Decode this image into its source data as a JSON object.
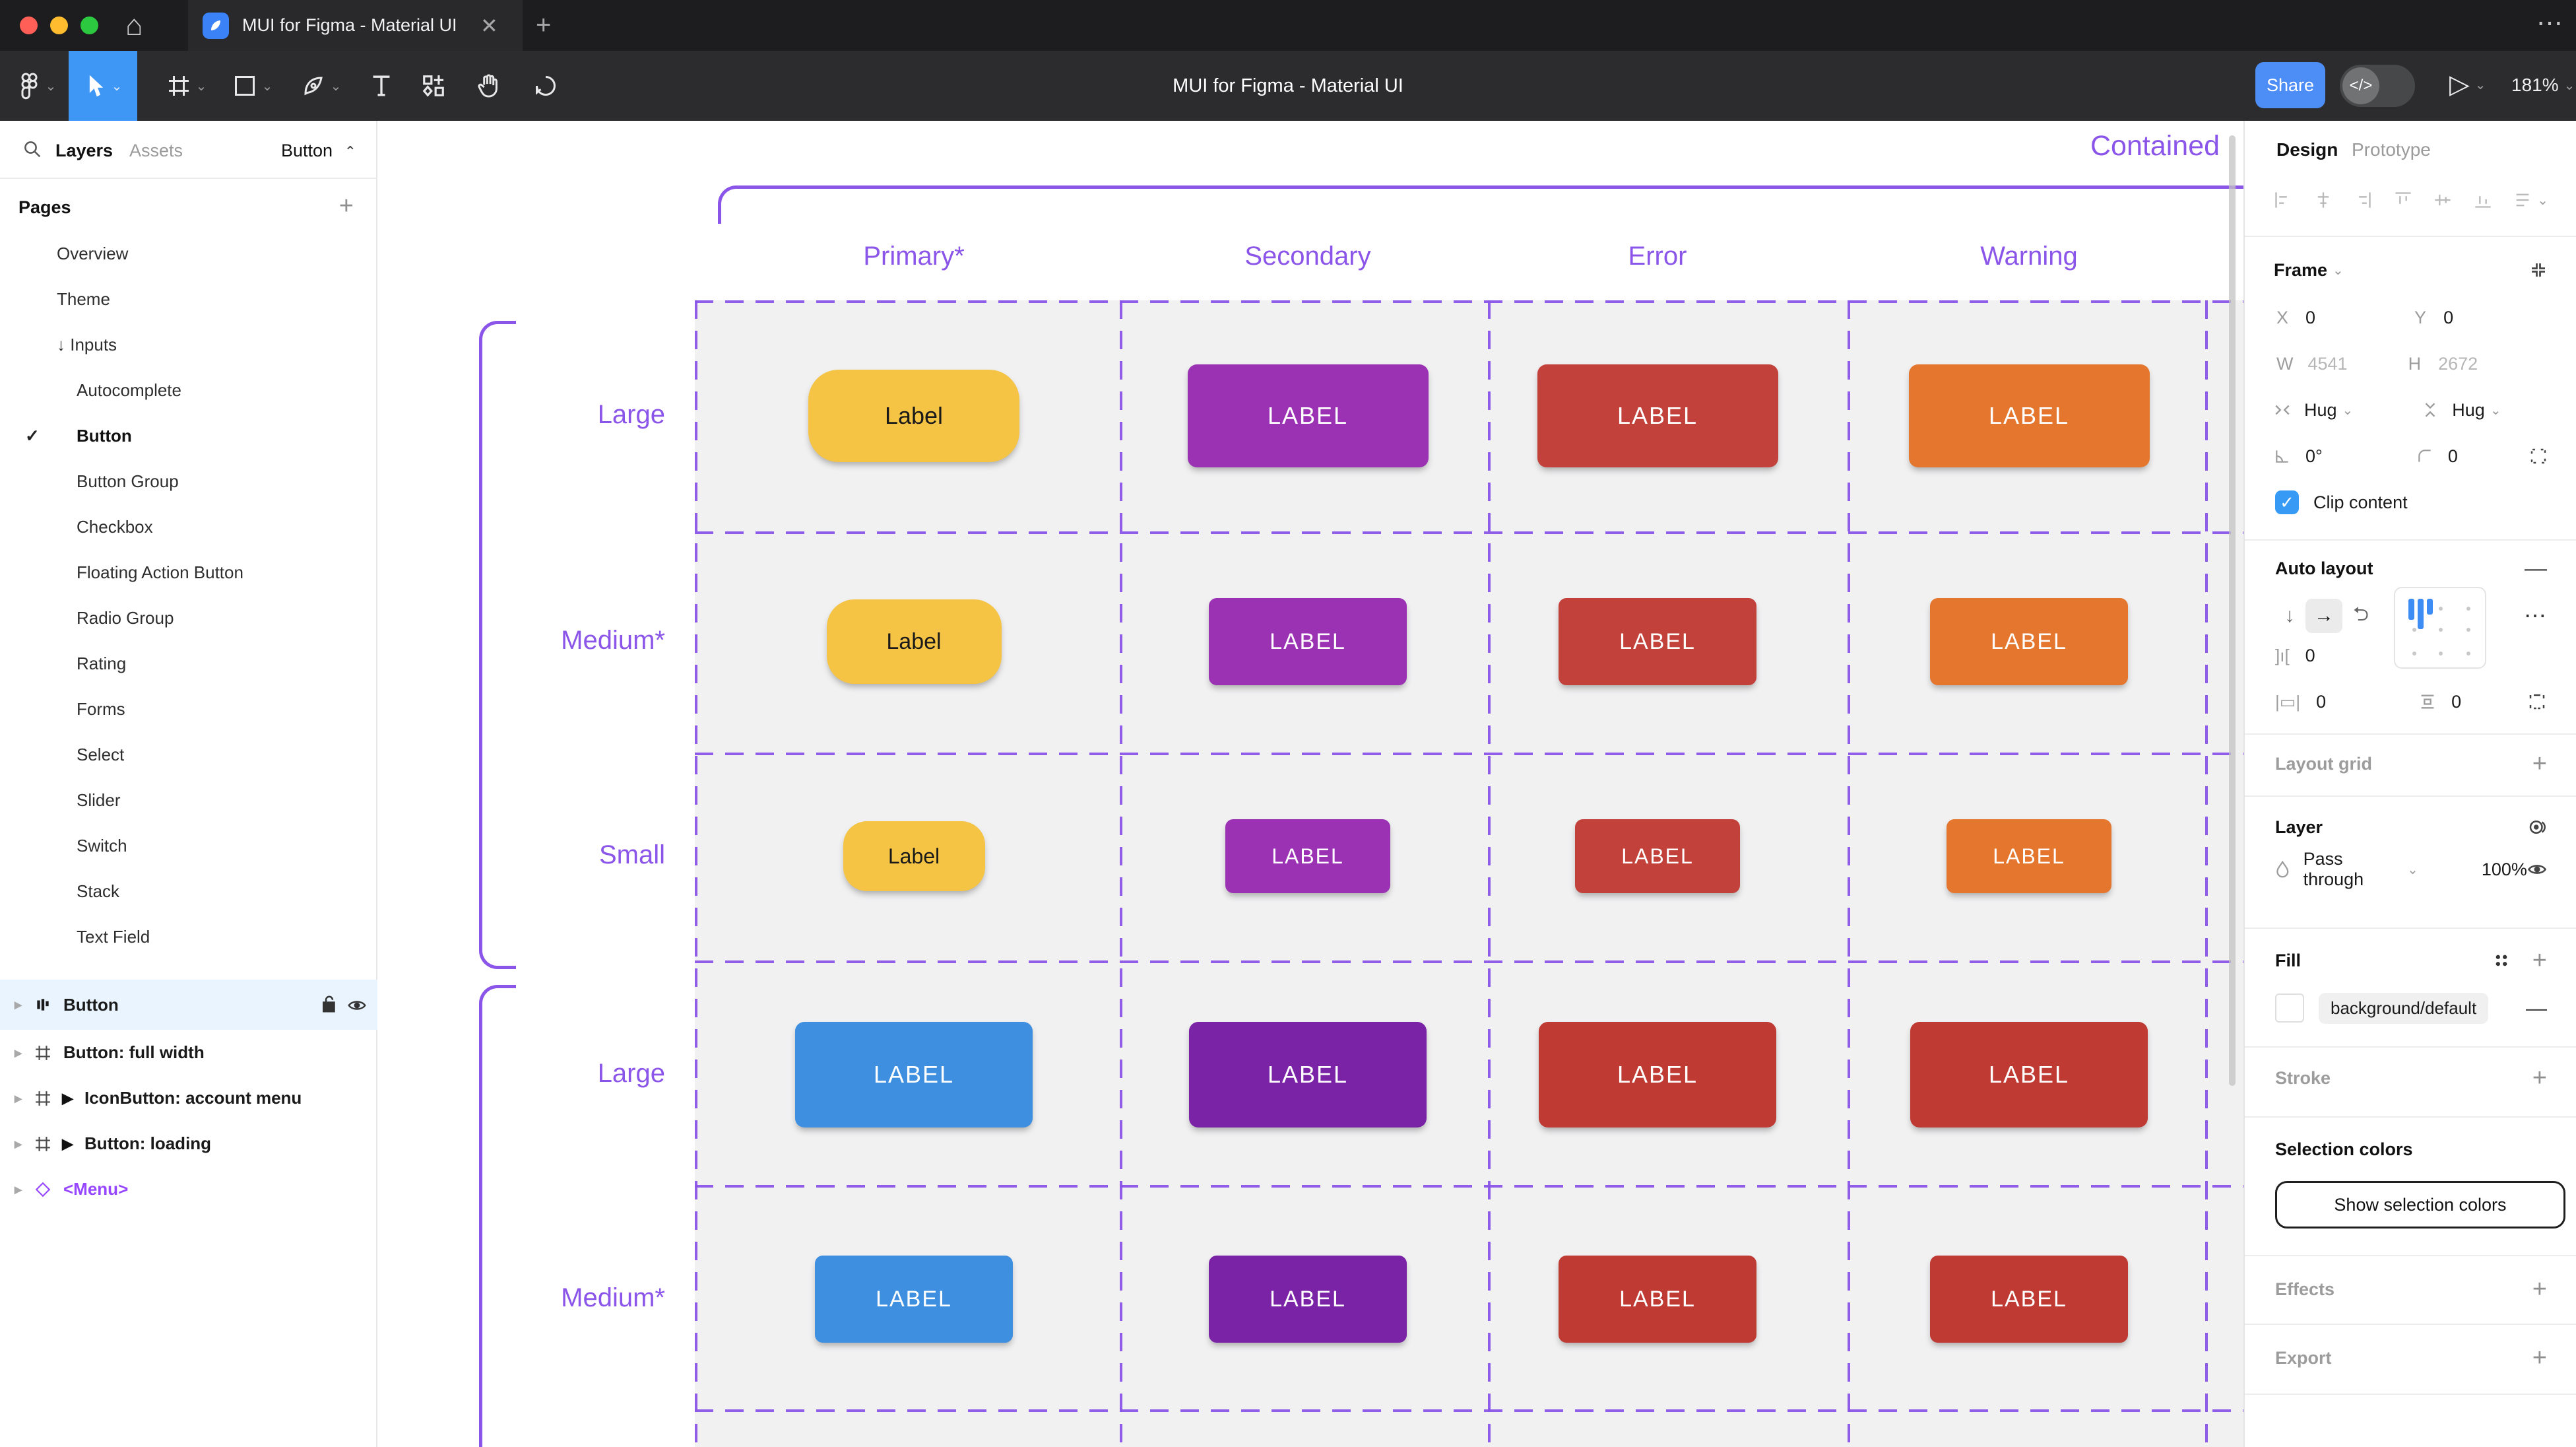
{
  "colors": {
    "accent_purple": "#8A55E8",
    "menu_purple": "#9747FF",
    "figma_blue": "#4C8DF6",
    "tool_selected_blue": "#3E97F4",
    "checkbox_blue": "#379BF5",
    "selected_row_bg": "#E9F4FE",
    "grid_bg": "#F1F1F2",
    "traffic_red": "#FF5F57",
    "traffic_yellow": "#FEBC2E",
    "traffic_green": "#2BC840"
  },
  "titlebar": {
    "tab_title": "MUI for Figma - Material UI",
    "close_glyph": "✕",
    "new_tab_glyph": "+",
    "more_glyph": "⋯"
  },
  "toolbar": {
    "doc_title": "MUI for Figma - Material UI",
    "share_label": "Share",
    "dev_toggle_glyph": "</>",
    "play_glyph": "▷",
    "zoom_level": "181%"
  },
  "sidebar": {
    "tab_layers": "Layers",
    "tab_assets": "Assets",
    "component_selector": "Button",
    "selector_chevron": "⌃",
    "pages_header": "Pages",
    "add_glyph": "+",
    "check_glyph": "✓",
    "expand_glyph": "▸",
    "component_glyph": "▶",
    "instance_glyph": "◇",
    "pages": [
      {
        "label": "Overview",
        "indent": 1
      },
      {
        "label": "Theme",
        "indent": 1
      },
      {
        "label": "↓ Inputs",
        "indent": 1
      },
      {
        "label": "Autocomplete",
        "indent": 2
      },
      {
        "label": "Button",
        "indent": 2,
        "bold": true,
        "checked": true
      },
      {
        "label": "Button Group",
        "indent": 2
      },
      {
        "label": "Checkbox",
        "indent": 2
      },
      {
        "label": "Floating Action Button",
        "indent": 2
      },
      {
        "label": "Radio Group",
        "indent": 2
      },
      {
        "label": "Rating",
        "indent": 2
      },
      {
        "label": "Forms",
        "indent": 2
      },
      {
        "label": "Select",
        "indent": 2
      },
      {
        "label": "Slider",
        "indent": 2
      },
      {
        "label": "Switch",
        "indent": 2
      },
      {
        "label": "Stack",
        "indent": 2
      },
      {
        "label": "Text Field",
        "indent": 2
      }
    ],
    "layers": [
      {
        "label": "Button",
        "icon": "auto-layout",
        "selected": true
      },
      {
        "label": "Button: full width",
        "icon": "frame"
      },
      {
        "label": "IconButton: account menu",
        "icon": "frame",
        "component_arrow": true
      },
      {
        "label": "Button: loading",
        "icon": "frame",
        "component_arrow": true
      },
      {
        "label": "<Menu>",
        "icon": "instance",
        "purple": true
      }
    ]
  },
  "canvas": {
    "section_title": "Contained",
    "columns": [
      "Primary*",
      "Secondary",
      "Error",
      "Warning"
    ],
    "row_labels": [
      "Large",
      "Medium*",
      "Small",
      "Large",
      "Medium*"
    ],
    "buttons": [
      [
        {
          "label": "Label",
          "bg": "#F5C444",
          "fg": "#1A1A1A"
        },
        {
          "label": "LABEL",
          "bg": "#9B32B4",
          "fg": "#FFFFFF"
        },
        {
          "label": "LABEL",
          "bg": "#C2413A",
          "fg": "#FFFFFF"
        },
        {
          "label": "LABEL",
          "bg": "#E4762E",
          "fg": "#FFFFFF"
        }
      ],
      [
        {
          "label": "Label",
          "bg": "#F5C444",
          "fg": "#1A1A1A"
        },
        {
          "label": "LABEL",
          "bg": "#9B32B4",
          "fg": "#FFFFFF"
        },
        {
          "label": "LABEL",
          "bg": "#C2413A",
          "fg": "#FFFFFF"
        },
        {
          "label": "LABEL",
          "bg": "#E4762E",
          "fg": "#FFFFFF"
        }
      ],
      [
        {
          "label": "Label",
          "bg": "#F5C444",
          "fg": "#1A1A1A"
        },
        {
          "label": "LABEL",
          "bg": "#9B32B4",
          "fg": "#FFFFFF"
        },
        {
          "label": "LABEL",
          "bg": "#C2413A",
          "fg": "#FFFFFF"
        },
        {
          "label": "LABEL",
          "bg": "#E4762E",
          "fg": "#FFFFFF"
        }
      ],
      [
        {
          "label": "LABEL",
          "bg": "#3E8FE0",
          "fg": "#FFFFFF"
        },
        {
          "label": "LABEL",
          "bg": "#7B23A7",
          "fg": "#FFFFFF"
        },
        {
          "label": "LABEL",
          "bg": "#BF3A33",
          "fg": "#FFFFFF"
        },
        {
          "label": "LABEL",
          "bg": "#BF3A33",
          "fg": "#FFFFFF"
        }
      ],
      [
        {
          "label": "LABEL",
          "bg": "#3E8FE0",
          "fg": "#FFFFFF"
        },
        {
          "label": "LABEL",
          "bg": "#7B23A7",
          "fg": "#FFFFFF"
        },
        {
          "label": "LABEL",
          "bg": "#BF3A33",
          "fg": "#FFFFFF"
        },
        {
          "label": "LABEL",
          "bg": "#BF3A33",
          "fg": "#FFFFFF"
        }
      ]
    ]
  },
  "inspector": {
    "tab_design": "Design",
    "tab_prototype": "Prototype",
    "frame": {
      "label": "Frame",
      "x_label": "X",
      "x": "0",
      "y_label": "Y",
      "y": "0",
      "w_label": "W",
      "w": "4541",
      "h_label": "H",
      "h": "2672",
      "hug_h": "Hug",
      "hug_v": "Hug",
      "rotation": "0°",
      "radius": "0",
      "clip_label": "Clip content"
    },
    "auto_layout": {
      "title": "Auto layout",
      "gap": "0",
      "padding_h": "0",
      "padding_v": "0",
      "remove_glyph": "—",
      "more_glyph": "⋯"
    },
    "layout_grid": {
      "title": "Layout grid",
      "add_glyph": "+"
    },
    "layer": {
      "title": "Layer",
      "blend_mode": "Pass through",
      "opacity": "100%"
    },
    "fill": {
      "title": "Fill",
      "style_name": "background/default",
      "remove_glyph": "—",
      "add_glyph": "+"
    },
    "stroke": {
      "title": "Stroke",
      "add_glyph": "+"
    },
    "selection_colors": {
      "title": "Selection colors",
      "button_label": "Show selection colors"
    },
    "effects": {
      "title": "Effects",
      "add_glyph": "+"
    },
    "export": {
      "title": "Export",
      "add_glyph": "+"
    }
  }
}
